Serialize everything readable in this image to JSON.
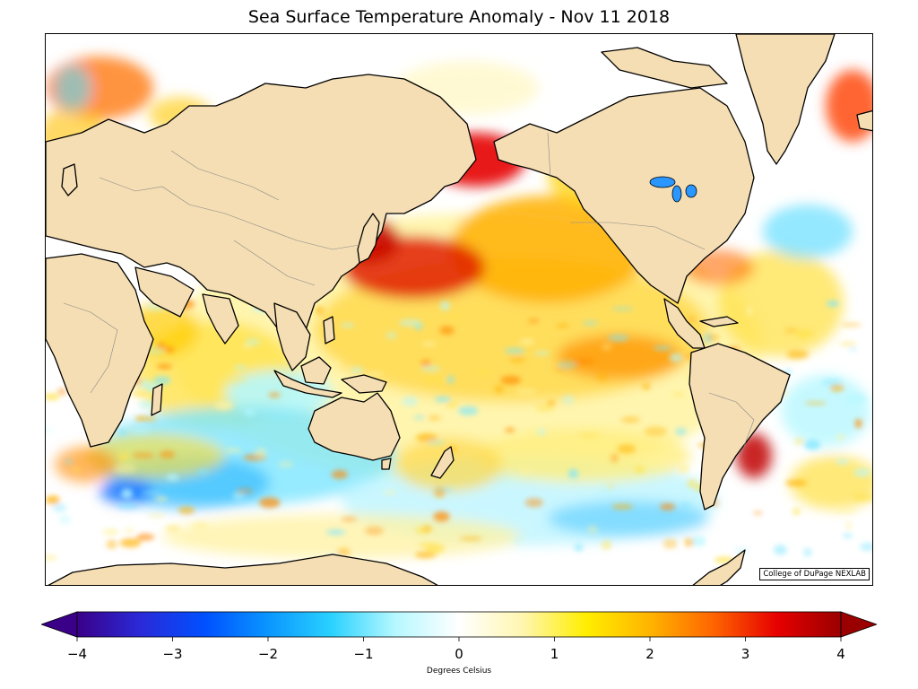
{
  "title": "Sea Surface Temperature Anomaly - Nov 11 2018",
  "credit": "College of DuPage NEXLAB",
  "colorbar": {
    "label": "Degrees Celsius",
    "min": -4,
    "max": 4,
    "ticks": [
      "−4",
      "−3",
      "−2",
      "−1",
      "0",
      "1",
      "2",
      "3",
      "4"
    ],
    "extend": "both",
    "colors": [
      "#3a0088",
      "#2a2ad8",
      "#0050ff",
      "#0a96ff",
      "#2ad2ff",
      "#b6f8ff",
      "#ffffff",
      "#fff6b0",
      "#ffee00",
      "#ffb400",
      "#ff6400",
      "#e60000",
      "#9a0000"
    ]
  },
  "colors": {
    "land": "#f5deb3",
    "ocean_neutral": "#ffffff",
    "coastline": "#000000",
    "border": "#888888"
  }
}
